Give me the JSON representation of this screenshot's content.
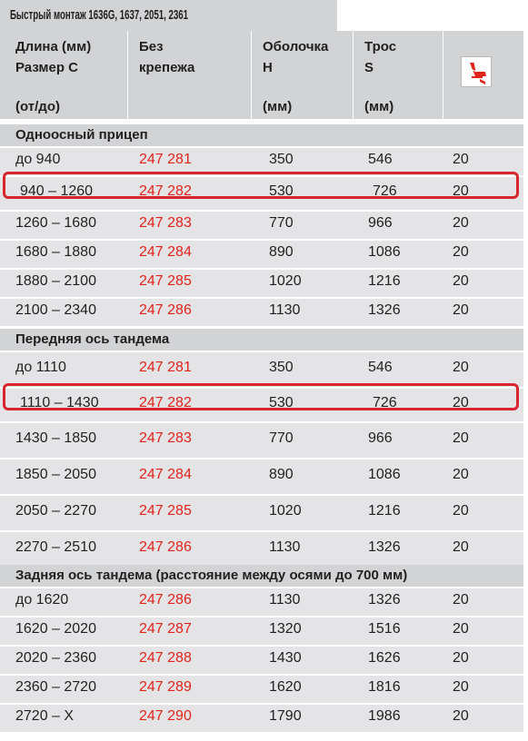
{
  "title": "Быстрый монтаж 1636G, 1637, 2051, 2361",
  "header": {
    "length": [
      "Длина (мм)",
      "Размер С",
      "(от/до)"
    ],
    "no_fixing": [
      "Без",
      "крепежа"
    ],
    "sheath": [
      "Оболочка",
      "H",
      "(мм)"
    ],
    "cable": [
      "Трос",
      "S",
      "(мм)"
    ],
    "icon": "package-quantity-icon"
  },
  "sections": [
    {
      "title": "Одноосный прицеп",
      "rows": [
        {
          "range": "до 940",
          "part": "247 281",
          "sheath": "350",
          "cable": "546",
          "qty": "20"
        },
        {
          "range": "940 – 1260",
          "part": "247 282",
          "sheath": "530",
          "cable": "726",
          "qty": "20"
        },
        {
          "range": "1260 – 1680",
          "part": "247 283",
          "sheath": "770",
          "cable": "966",
          "qty": "20"
        },
        {
          "range": "1680 – 1880",
          "part": "247 284",
          "sheath": "890",
          "cable": "1086",
          "qty": "20"
        },
        {
          "range": "1880 – 2100",
          "part": "247 285",
          "sheath": "1020",
          "cable": "1216",
          "qty": "20"
        },
        {
          "range": "2100 – 2340",
          "part": "247 286",
          "sheath": "1130",
          "cable": "1326",
          "qty": "20"
        }
      ]
    },
    {
      "title": "Передняя ось тандема",
      "rows": [
        {
          "range": "до 1110",
          "part": "247 281",
          "sheath": "350",
          "cable": "546",
          "qty": "20"
        },
        {
          "range": "1110 – 1430",
          "part": "247 282",
          "sheath": "530",
          "cable": "726",
          "qty": "20"
        },
        {
          "range": "1430 – 1850",
          "part": "247 283",
          "sheath": "770",
          "cable": "966",
          "qty": "20"
        },
        {
          "range": "1850 – 2050",
          "part": "247 284",
          "sheath": "890",
          "cable": "1086",
          "qty": "20"
        },
        {
          "range": "2050 – 2270",
          "part": "247 285",
          "sheath": "1020",
          "cable": "1216",
          "qty": "20"
        },
        {
          "range": "2270 – 2510",
          "part": "247 286",
          "sheath": "1130",
          "cable": "1326",
          "qty": "20"
        }
      ]
    },
    {
      "title": "Задняя ось тандема (расстояние между осями до 700 мм)",
      "rows": [
        {
          "range": "до 1620",
          "part": "247 286",
          "sheath": "1130",
          "cable": "1326",
          "qty": "20"
        },
        {
          "range": "1620 – 2020",
          "part": "247 287",
          "sheath": "1320",
          "cable": "1516",
          "qty": "20"
        },
        {
          "range": "2020 – 2360",
          "part": "247 288",
          "sheath": "1430",
          "cable": "1626",
          "qty": "20"
        },
        {
          "range": "2360 – 2720",
          "part": "247 289",
          "sheath": "1620",
          "cable": "1816",
          "qty": "20"
        },
        {
          "range": "2720 – X",
          "part": "247 290",
          "sheath": "1790",
          "cable": "1986",
          "qty": "20"
        }
      ]
    }
  ],
  "colors": {
    "header_bg": "#d2d3d5",
    "row_bg": "#e4e4e6",
    "part_number": "#e2231a",
    "highlight_frame": "#d8262e"
  }
}
